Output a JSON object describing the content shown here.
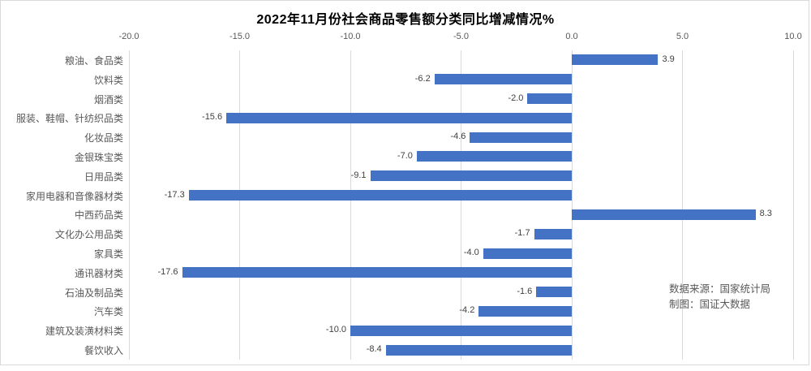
{
  "annotation": {
    "line1": "数据来源：国家统计局",
    "line2": "制图：国证大数据"
  },
  "colors": {
    "bar": "#4472C4",
    "grid": "#d9d9d9",
    "axis_text": "#595959",
    "value_text": "#404040",
    "title_text": "#000000",
    "frame_border": "#d9d9d9"
  },
  "chart_data": {
    "type": "bar",
    "orientation": "horizontal",
    "title": "2022年11月份社会商品零售额分类同比增减情况%",
    "categories": [
      "粮油、食品类",
      "饮料类",
      "烟酒类",
      "服装、鞋帽、针纺织品类",
      "化妆品类",
      "金银珠宝类",
      "日用品类",
      "家用电器和音像器材类",
      "中西药品类",
      "文化办公用品类",
      "家具类",
      "通讯器材类",
      "石油及制品类",
      "汽车类",
      "建筑及装潢材料类",
      "餐饮收入"
    ],
    "values": [
      3.9,
      -6.2,
      -2.0,
      -15.6,
      -4.6,
      -7.0,
      -9.1,
      -17.3,
      8.3,
      -1.7,
      -4.0,
      -17.6,
      -1.6,
      -4.2,
      -10.0,
      -8.4
    ],
    "xlim": [
      -20.0,
      10.0
    ],
    "xticks": [
      -20.0,
      -15.0,
      -10.0,
      -5.0,
      0.0,
      5.0,
      10.0
    ],
    "xtick_labels": [
      "-20.0",
      "-15.0",
      "-10.0",
      "-5.0",
      "0.0",
      "5.0",
      "10.0"
    ],
    "xlabel": "",
    "ylabel": "",
    "grid": true,
    "legend": false,
    "value_labels_shown": true
  }
}
